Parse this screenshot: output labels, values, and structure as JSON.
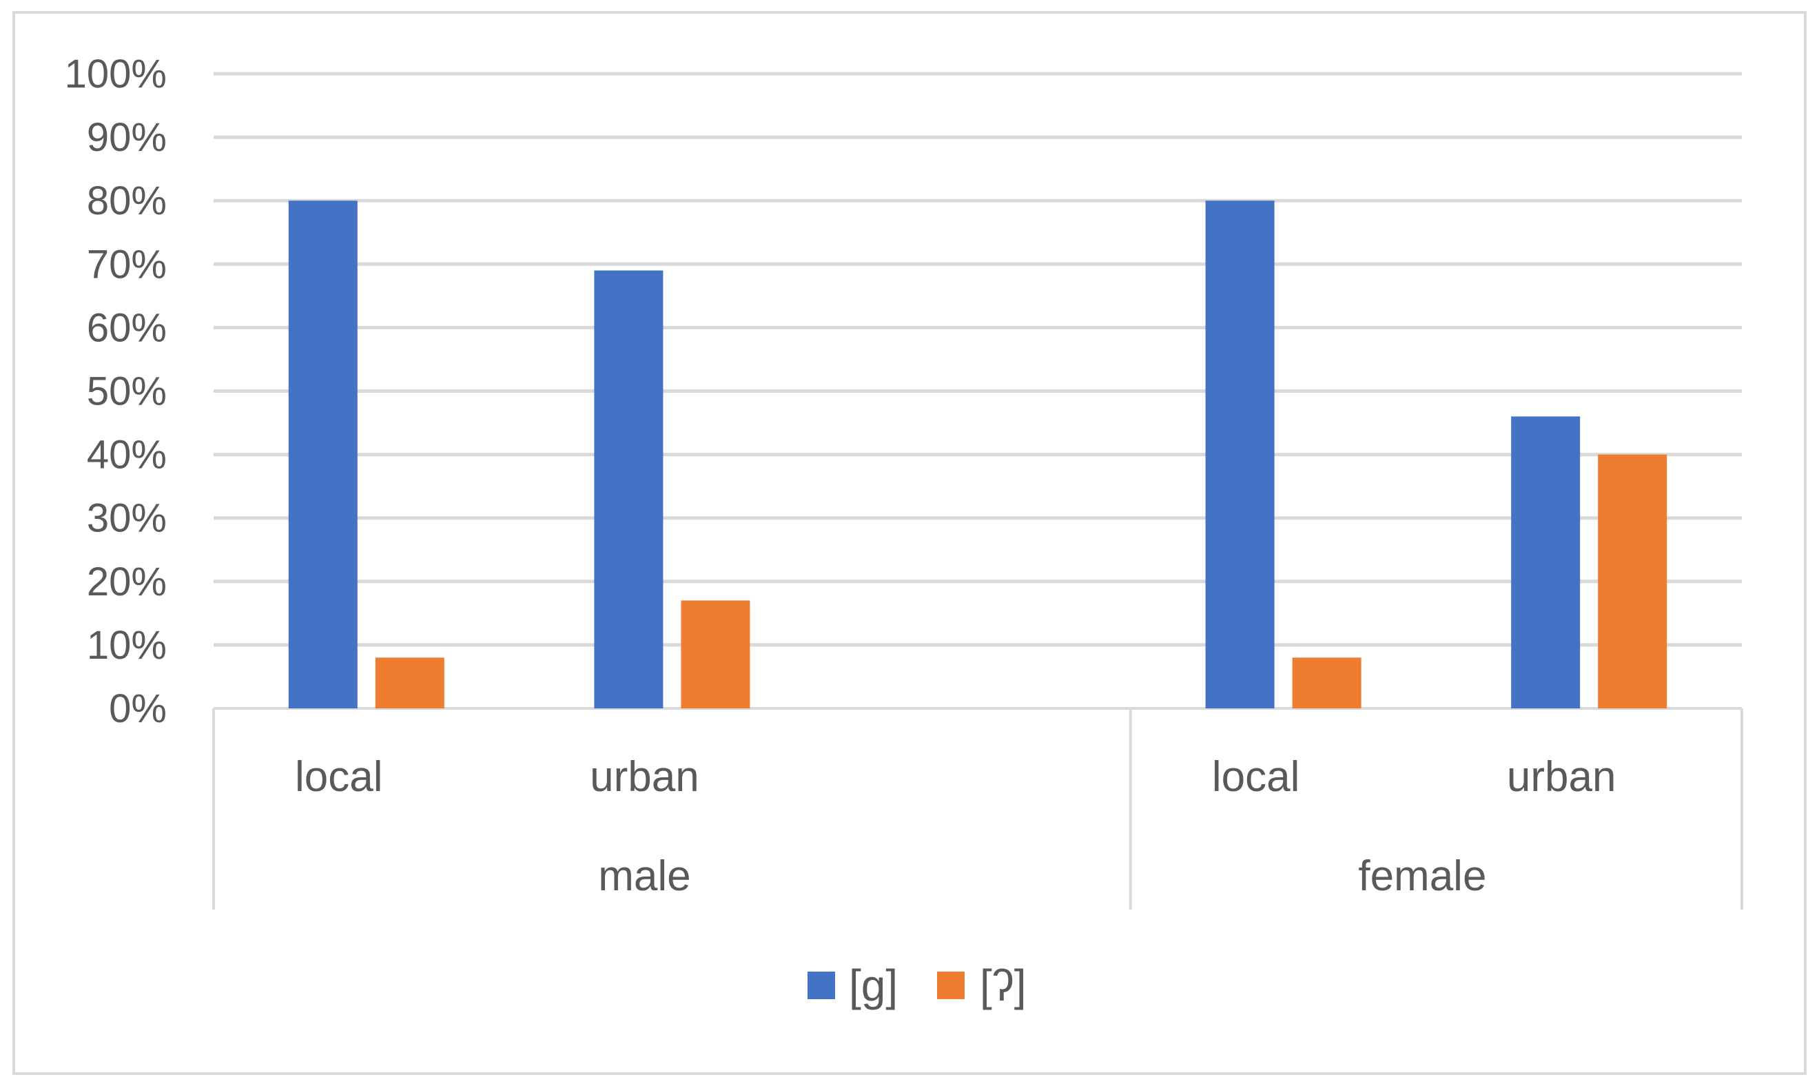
{
  "chart_data": {
    "type": "bar",
    "title": "",
    "xlabel": "",
    "ylabel": "",
    "ylim": [
      0,
      100
    ],
    "yticks": [
      "0%",
      "10%",
      "20%",
      "30%",
      "40%",
      "50%",
      "60%",
      "70%",
      "80%",
      "90%",
      "100%"
    ],
    "groups": [
      {
        "name": "male",
        "categories": [
          "local",
          "urban"
        ]
      },
      {
        "name": "female",
        "categories": [
          "local",
          "urban"
        ]
      }
    ],
    "categories": [
      "local",
      "urban",
      "",
      "local",
      "urban"
    ],
    "series": [
      {
        "name": "[g]",
        "color": "#4472C4",
        "values": [
          80,
          69,
          null,
          80,
          46
        ]
      },
      {
        "name": "[ʔ]",
        "color": "#ED7D31",
        "values": [
          8,
          17,
          null,
          8,
          40
        ]
      }
    ],
    "grid": true,
    "legend": "bottom"
  }
}
